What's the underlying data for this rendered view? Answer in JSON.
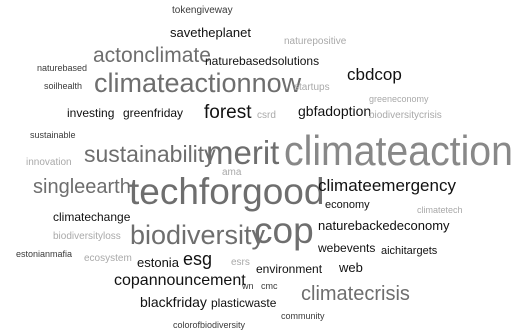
{
  "words": {
    "tokengiveway": "tokengiveway",
    "savetheplanet": "savetheplanet",
    "naturepositive": "naturepositive",
    "actonclimate": "actonclimate",
    "naturebasedsolutions": "naturebasedsolutions",
    "naturebased": "naturebased",
    "climateactionnow": "climateactionnow",
    "startups": "startups",
    "cbdcop": "cbdcop",
    "soilhealth": "soilhealth",
    "greeneconomy": "greeneconomy",
    "investing": "investing",
    "greenfriday": "greenfriday",
    "forest": "forest",
    "csrd": "csrd",
    "gbfadoption": "gbfadoption",
    "biodiversitycrisis": "biodiversitycrisis",
    "sustainable": "sustainable",
    "merit": "merit",
    "climateaction": "climateaction",
    "sustainability": "sustainability",
    "innovation": "innovation",
    "ama": "ama",
    "singleearth": "singleearth",
    "techforgood": "techforgood",
    "climateemergency": "climateemergency",
    "economy": "economy",
    "climatechange": "climatechange",
    "climatetech": "climatetech",
    "naturebackedeconomy": "naturebackedeconomy",
    "biodiversityloss": "biodiversityloss",
    "biodiversity": "biodiversity",
    "cop": "cop",
    "estonianmafia": "estonianmafia",
    "ecosystem": "ecosystem",
    "estonia": "estonia",
    "esg": "esg",
    "esrs": "esrs",
    "webevents": "webevents",
    "aichitargets": "aichitargets",
    "environment": "environment",
    "web": "web",
    "copannouncement": "copannouncement",
    "wn": "wn",
    "cmc": "cmc",
    "climatecrisis": "climatecrisis",
    "blackfriday": "blackfriday",
    "plasticwaste": "plasticwaste",
    "community": "community",
    "colorofbiodiversity": "colorofbiodiversity"
  }
}
